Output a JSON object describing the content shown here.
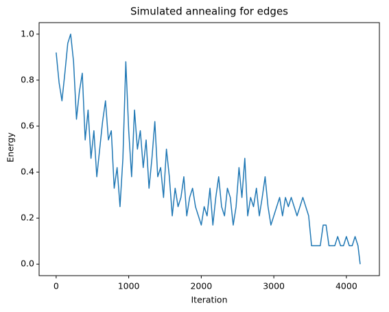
{
  "chart_data": {
    "type": "line",
    "title": "Simulated annealing for edges",
    "x_label": "Iteration",
    "y_label": "Energy",
    "x": [
      0,
      40,
      80,
      120,
      160,
      200,
      240,
      280,
      320,
      360,
      400,
      440,
      480,
      520,
      560,
      600,
      640,
      680,
      720,
      760,
      800,
      840,
      880,
      920,
      960,
      1000,
      1040,
      1080,
      1120,
      1160,
      1200,
      1240,
      1280,
      1320,
      1360,
      1400,
      1440,
      1480,
      1520,
      1560,
      1600,
      1640,
      1680,
      1720,
      1760,
      1800,
      1840,
      1880,
      1920,
      1960,
      2000,
      2040,
      2080,
      2120,
      2160,
      2200,
      2240,
      2280,
      2320,
      2360,
      2400,
      2440,
      2480,
      2520,
      2560,
      2600,
      2640,
      2680,
      2720,
      2760,
      2800,
      2840,
      2880,
      2920,
      2960,
      3000,
      3040,
      3080,
      3120,
      3160,
      3200,
      3240,
      3280,
      3320,
      3360,
      3400,
      3440,
      3480,
      3520,
      3560,
      3600,
      3640,
      3680,
      3720,
      3760,
      3800,
      3840,
      3880,
      3920,
      3960,
      4000,
      4040,
      4080,
      4120,
      4160,
      4190
    ],
    "series": [
      {
        "name": "Energy",
        "color": "#1f77b4",
        "values": [
          0.92,
          0.79,
          0.71,
          0.83,
          0.96,
          1.0,
          0.88,
          0.63,
          0.75,
          0.83,
          0.54,
          0.67,
          0.46,
          0.58,
          0.38,
          0.5,
          0.62,
          0.71,
          0.54,
          0.58,
          0.33,
          0.42,
          0.25,
          0.46,
          0.88,
          0.58,
          0.38,
          0.67,
          0.5,
          0.58,
          0.42,
          0.54,
          0.33,
          0.46,
          0.62,
          0.38,
          0.42,
          0.29,
          0.5,
          0.38,
          0.21,
          0.33,
          0.25,
          0.29,
          0.38,
          0.21,
          0.29,
          0.33,
          0.25,
          0.21,
          0.17,
          0.25,
          0.21,
          0.33,
          0.17,
          0.29,
          0.38,
          0.25,
          0.21,
          0.33,
          0.29,
          0.17,
          0.25,
          0.42,
          0.29,
          0.46,
          0.21,
          0.29,
          0.25,
          0.33,
          0.21,
          0.29,
          0.38,
          0.25,
          0.17,
          0.21,
          0.25,
          0.29,
          0.21,
          0.29,
          0.25,
          0.29,
          0.25,
          0.21,
          0.25,
          0.29,
          0.25,
          0.21,
          0.08,
          0.08,
          0.08,
          0.08,
          0.17,
          0.17,
          0.08,
          0.08,
          0.08,
          0.12,
          0.08,
          0.08,
          0.12,
          0.08,
          0.08,
          0.12,
          0.08,
          0.0
        ]
      }
    ],
    "xlim": [
      -235,
      4455
    ],
    "ylim": [
      -0.05,
      1.05
    ],
    "xticks": [
      0,
      1000,
      2000,
      3000,
      4000
    ],
    "yticks": [
      {
        "value": 0,
        "label": "0.0"
      },
      {
        "value": 0.2,
        "label": "0.2"
      },
      {
        "value": 0.4,
        "label": "0.4"
      },
      {
        "value": 0.6,
        "label": "0.6"
      },
      {
        "value": 0.8,
        "label": "0.8"
      },
      {
        "value": 1.0,
        "label": "1.0"
      }
    ],
    "grid": false
  }
}
